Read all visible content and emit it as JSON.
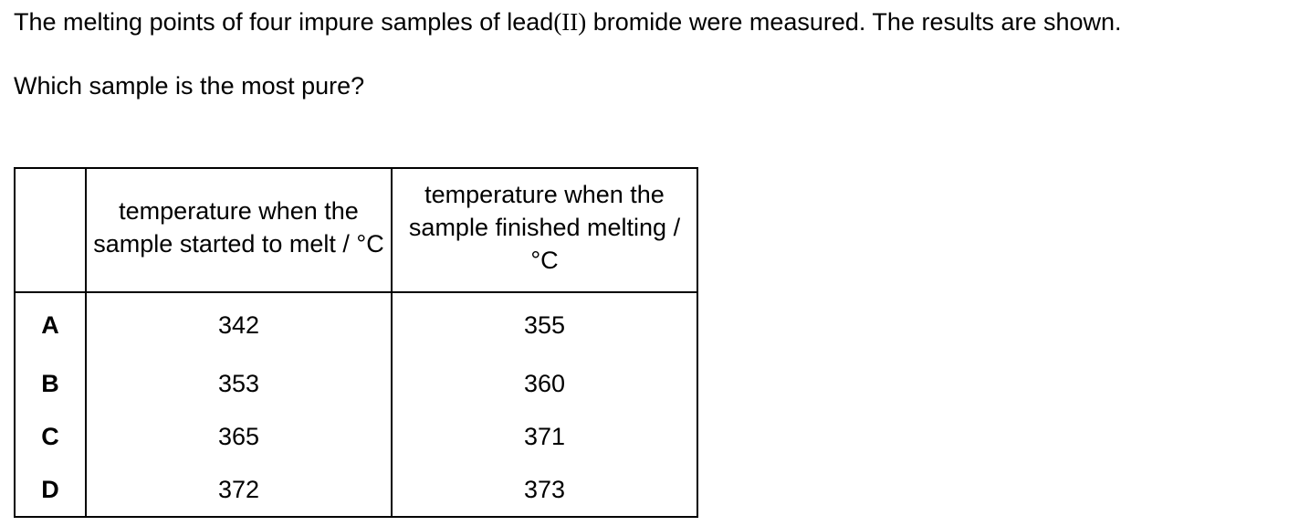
{
  "question": {
    "intro_before": "The melting points of four impure samples of lead",
    "intro_roman": "(II)",
    "intro_after": " bromide were measured. The results are shown.",
    "ask": "Which sample is the most pure?"
  },
  "table": {
    "headers": [
      "",
      "temperature when the sample started to melt / °C",
      "temperature when the sample finished melting / °C"
    ],
    "rows": [
      {
        "letter": "A",
        "start": "342",
        "finish": "355"
      },
      {
        "letter": "B",
        "start": "353",
        "finish": "360"
      },
      {
        "letter": "C",
        "start": "365",
        "finish": "371"
      },
      {
        "letter": "D",
        "start": "372",
        "finish": "373"
      }
    ]
  }
}
